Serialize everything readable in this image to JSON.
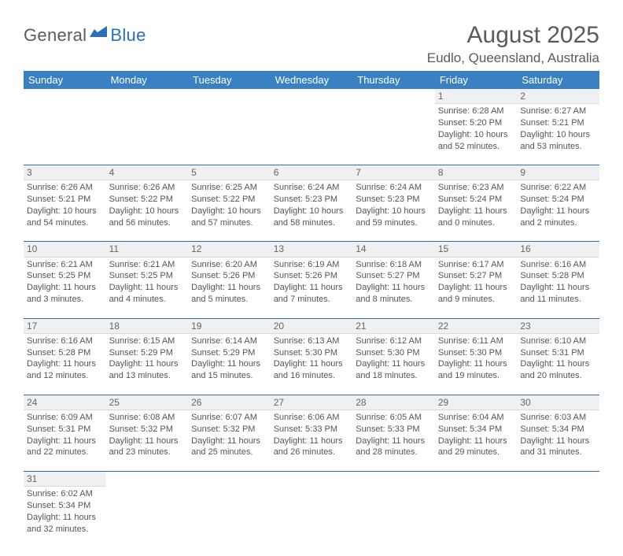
{
  "logo": {
    "part1": "General",
    "part2": "Blue"
  },
  "title": "August 2025",
  "location": "Eudlo, Queensland, Australia",
  "colors": {
    "header_bg": "#3a81c4",
    "header_text": "#ffffff",
    "daynum_bg": "#eef0f1",
    "daynum_border": "#d9dcde",
    "week_border": "#2f6fb2",
    "text": "#555555",
    "logo_gray": "#5b5b5b",
    "logo_blue": "#2a6fba"
  },
  "day_headers": [
    "Sunday",
    "Monday",
    "Tuesday",
    "Wednesday",
    "Thursday",
    "Friday",
    "Saturday"
  ],
  "weeks": [
    [
      null,
      null,
      null,
      null,
      null,
      {
        "n": "1",
        "sr": "Sunrise: 6:28 AM",
        "ss": "Sunset: 5:20 PM",
        "dl1": "Daylight: 10 hours",
        "dl2": "and 52 minutes."
      },
      {
        "n": "2",
        "sr": "Sunrise: 6:27 AM",
        "ss": "Sunset: 5:21 PM",
        "dl1": "Daylight: 10 hours",
        "dl2": "and 53 minutes."
      }
    ],
    [
      {
        "n": "3",
        "sr": "Sunrise: 6:26 AM",
        "ss": "Sunset: 5:21 PM",
        "dl1": "Daylight: 10 hours",
        "dl2": "and 54 minutes."
      },
      {
        "n": "4",
        "sr": "Sunrise: 6:26 AM",
        "ss": "Sunset: 5:22 PM",
        "dl1": "Daylight: 10 hours",
        "dl2": "and 56 minutes."
      },
      {
        "n": "5",
        "sr": "Sunrise: 6:25 AM",
        "ss": "Sunset: 5:22 PM",
        "dl1": "Daylight: 10 hours",
        "dl2": "and 57 minutes."
      },
      {
        "n": "6",
        "sr": "Sunrise: 6:24 AM",
        "ss": "Sunset: 5:23 PM",
        "dl1": "Daylight: 10 hours",
        "dl2": "and 58 minutes."
      },
      {
        "n": "7",
        "sr": "Sunrise: 6:24 AM",
        "ss": "Sunset: 5:23 PM",
        "dl1": "Daylight: 10 hours",
        "dl2": "and 59 minutes."
      },
      {
        "n": "8",
        "sr": "Sunrise: 6:23 AM",
        "ss": "Sunset: 5:24 PM",
        "dl1": "Daylight: 11 hours",
        "dl2": "and 0 minutes."
      },
      {
        "n": "9",
        "sr": "Sunrise: 6:22 AM",
        "ss": "Sunset: 5:24 PM",
        "dl1": "Daylight: 11 hours",
        "dl2": "and 2 minutes."
      }
    ],
    [
      {
        "n": "10",
        "sr": "Sunrise: 6:21 AM",
        "ss": "Sunset: 5:25 PM",
        "dl1": "Daylight: 11 hours",
        "dl2": "and 3 minutes."
      },
      {
        "n": "11",
        "sr": "Sunrise: 6:21 AM",
        "ss": "Sunset: 5:25 PM",
        "dl1": "Daylight: 11 hours",
        "dl2": "and 4 minutes."
      },
      {
        "n": "12",
        "sr": "Sunrise: 6:20 AM",
        "ss": "Sunset: 5:26 PM",
        "dl1": "Daylight: 11 hours",
        "dl2": "and 5 minutes."
      },
      {
        "n": "13",
        "sr": "Sunrise: 6:19 AM",
        "ss": "Sunset: 5:26 PM",
        "dl1": "Daylight: 11 hours",
        "dl2": "and 7 minutes."
      },
      {
        "n": "14",
        "sr": "Sunrise: 6:18 AM",
        "ss": "Sunset: 5:27 PM",
        "dl1": "Daylight: 11 hours",
        "dl2": "and 8 minutes."
      },
      {
        "n": "15",
        "sr": "Sunrise: 6:17 AM",
        "ss": "Sunset: 5:27 PM",
        "dl1": "Daylight: 11 hours",
        "dl2": "and 9 minutes."
      },
      {
        "n": "16",
        "sr": "Sunrise: 6:16 AM",
        "ss": "Sunset: 5:28 PM",
        "dl1": "Daylight: 11 hours",
        "dl2": "and 11 minutes."
      }
    ],
    [
      {
        "n": "17",
        "sr": "Sunrise: 6:16 AM",
        "ss": "Sunset: 5:28 PM",
        "dl1": "Daylight: 11 hours",
        "dl2": "and 12 minutes."
      },
      {
        "n": "18",
        "sr": "Sunrise: 6:15 AM",
        "ss": "Sunset: 5:29 PM",
        "dl1": "Daylight: 11 hours",
        "dl2": "and 13 minutes."
      },
      {
        "n": "19",
        "sr": "Sunrise: 6:14 AM",
        "ss": "Sunset: 5:29 PM",
        "dl1": "Daylight: 11 hours",
        "dl2": "and 15 minutes."
      },
      {
        "n": "20",
        "sr": "Sunrise: 6:13 AM",
        "ss": "Sunset: 5:30 PM",
        "dl1": "Daylight: 11 hours",
        "dl2": "and 16 minutes."
      },
      {
        "n": "21",
        "sr": "Sunrise: 6:12 AM",
        "ss": "Sunset: 5:30 PM",
        "dl1": "Daylight: 11 hours",
        "dl2": "and 18 minutes."
      },
      {
        "n": "22",
        "sr": "Sunrise: 6:11 AM",
        "ss": "Sunset: 5:30 PM",
        "dl1": "Daylight: 11 hours",
        "dl2": "and 19 minutes."
      },
      {
        "n": "23",
        "sr": "Sunrise: 6:10 AM",
        "ss": "Sunset: 5:31 PM",
        "dl1": "Daylight: 11 hours",
        "dl2": "and 20 minutes."
      }
    ],
    [
      {
        "n": "24",
        "sr": "Sunrise: 6:09 AM",
        "ss": "Sunset: 5:31 PM",
        "dl1": "Daylight: 11 hours",
        "dl2": "and 22 minutes."
      },
      {
        "n": "25",
        "sr": "Sunrise: 6:08 AM",
        "ss": "Sunset: 5:32 PM",
        "dl1": "Daylight: 11 hours",
        "dl2": "and 23 minutes."
      },
      {
        "n": "26",
        "sr": "Sunrise: 6:07 AM",
        "ss": "Sunset: 5:32 PM",
        "dl1": "Daylight: 11 hours",
        "dl2": "and 25 minutes."
      },
      {
        "n": "27",
        "sr": "Sunrise: 6:06 AM",
        "ss": "Sunset: 5:33 PM",
        "dl1": "Daylight: 11 hours",
        "dl2": "and 26 minutes."
      },
      {
        "n": "28",
        "sr": "Sunrise: 6:05 AM",
        "ss": "Sunset: 5:33 PM",
        "dl1": "Daylight: 11 hours",
        "dl2": "and 28 minutes."
      },
      {
        "n": "29",
        "sr": "Sunrise: 6:04 AM",
        "ss": "Sunset: 5:34 PM",
        "dl1": "Daylight: 11 hours",
        "dl2": "and 29 minutes."
      },
      {
        "n": "30",
        "sr": "Sunrise: 6:03 AM",
        "ss": "Sunset: 5:34 PM",
        "dl1": "Daylight: 11 hours",
        "dl2": "and 31 minutes."
      }
    ],
    [
      {
        "n": "31",
        "sr": "Sunrise: 6:02 AM",
        "ss": "Sunset: 5:34 PM",
        "dl1": "Daylight: 11 hours",
        "dl2": "and 32 minutes."
      },
      null,
      null,
      null,
      null,
      null,
      null
    ]
  ]
}
